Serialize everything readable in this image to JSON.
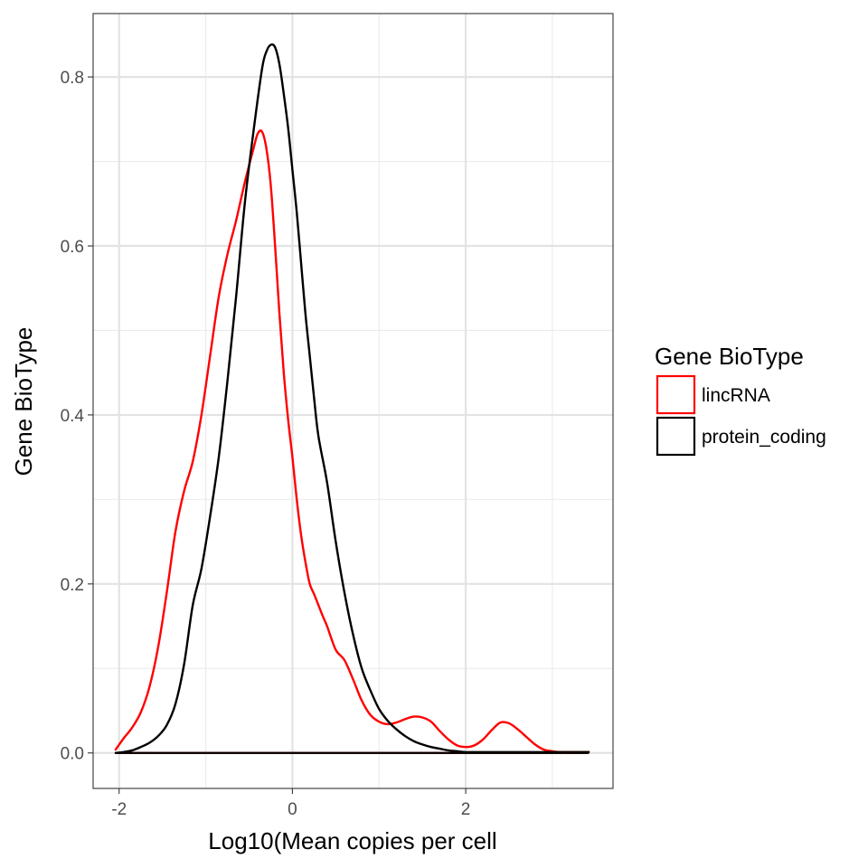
{
  "chart_data": {
    "type": "line",
    "xlabel": "Log10(Mean copies per cell",
    "ylabel": "Gene BioType",
    "xlim": [
      -2.3,
      3.7
    ],
    "ylim": [
      -0.042,
      0.875
    ],
    "x_ticks": [
      -2,
      0,
      2
    ],
    "x_tick_labels": [
      "-2",
      "0",
      "2"
    ],
    "y_ticks": [
      0.0,
      0.2,
      0.4,
      0.6,
      0.8
    ],
    "y_tick_labels": [
      "0.0",
      "0.2",
      "0.4",
      "0.6",
      "0.8"
    ],
    "grid": true,
    "legend": {
      "title": "Gene BioType",
      "position": "right"
    },
    "series": [
      {
        "name": "lincRNA",
        "color": "#ff0000",
        "x": [
          -2.04,
          -1.95,
          -1.85,
          -1.75,
          -1.65,
          -1.55,
          -1.45,
          -1.35,
          -1.25,
          -1.15,
          -1.05,
          -0.95,
          -0.85,
          -0.75,
          -0.65,
          -0.55,
          -0.45,
          -0.4,
          -0.35,
          -0.3,
          -0.25,
          -0.2,
          -0.15,
          -0.1,
          -0.05,
          0.0,
          0.05,
          0.1,
          0.15,
          0.2,
          0.25,
          0.3,
          0.35,
          0.4,
          0.5,
          0.6,
          0.7,
          0.8,
          0.9,
          1.0,
          1.1,
          1.2,
          1.3,
          1.4,
          1.5,
          1.6,
          1.7,
          1.8,
          1.9,
          2.0,
          2.1,
          2.2,
          2.3,
          2.4,
          2.5,
          2.6,
          2.7,
          2.8,
          2.9,
          3.0,
          3.1,
          3.2,
          3.3,
          3.42
        ],
        "y": [
          0.004,
          0.017,
          0.03,
          0.048,
          0.078,
          0.125,
          0.19,
          0.262,
          0.31,
          0.345,
          0.4,
          0.47,
          0.54,
          0.59,
          0.63,
          0.675,
          0.715,
          0.733,
          0.735,
          0.715,
          0.672,
          0.6,
          0.52,
          0.45,
          0.395,
          0.35,
          0.3,
          0.258,
          0.226,
          0.2,
          0.188,
          0.175,
          0.162,
          0.15,
          0.122,
          0.11,
          0.087,
          0.062,
          0.045,
          0.037,
          0.034,
          0.036,
          0.04,
          0.043,
          0.042,
          0.037,
          0.026,
          0.016,
          0.009,
          0.007,
          0.009,
          0.016,
          0.027,
          0.036,
          0.035,
          0.028,
          0.019,
          0.01,
          0.004,
          0.002,
          0.001,
          0.001,
          0.001,
          0.001
        ]
      },
      {
        "name": "protein_coding",
        "color": "#000000",
        "x": [
          -2.04,
          -1.95,
          -1.85,
          -1.75,
          -1.65,
          -1.55,
          -1.45,
          -1.35,
          -1.25,
          -1.15,
          -1.05,
          -0.95,
          -0.85,
          -0.75,
          -0.65,
          -0.55,
          -0.45,
          -0.35,
          -0.3,
          -0.25,
          -0.2,
          -0.15,
          -0.1,
          -0.05,
          0.0,
          0.05,
          0.1,
          0.15,
          0.2,
          0.25,
          0.3,
          0.4,
          0.5,
          0.6,
          0.7,
          0.8,
          0.9,
          1.0,
          1.1,
          1.2,
          1.3,
          1.4,
          1.5,
          1.6,
          1.7,
          1.8,
          1.9,
          2.0,
          2.2,
          2.4,
          2.6,
          2.8,
          3.0,
          3.2,
          3.42
        ],
        "y": [
          0.0,
          0.001,
          0.003,
          0.007,
          0.012,
          0.02,
          0.033,
          0.058,
          0.105,
          0.175,
          0.218,
          0.28,
          0.35,
          0.44,
          0.54,
          0.65,
          0.735,
          0.81,
          0.83,
          0.838,
          0.835,
          0.815,
          0.78,
          0.74,
          0.69,
          0.64,
          0.58,
          0.52,
          0.47,
          0.42,
          0.375,
          0.32,
          0.25,
          0.19,
          0.14,
          0.1,
          0.074,
          0.052,
          0.038,
          0.028,
          0.02,
          0.014,
          0.01,
          0.007,
          0.005,
          0.003,
          0.002,
          0.001,
          0.001,
          0.001,
          0.001,
          0.001,
          0.001,
          0.001,
          0.001
        ]
      }
    ],
    "baselines": [
      {
        "series": "lincRNA",
        "x": [
          -2.04,
          3.42
        ],
        "y": [
          0,
          0
        ]
      },
      {
        "series": "protein_coding",
        "x": [
          -2.04,
          3.42
        ],
        "y": [
          0,
          0
        ]
      }
    ]
  }
}
